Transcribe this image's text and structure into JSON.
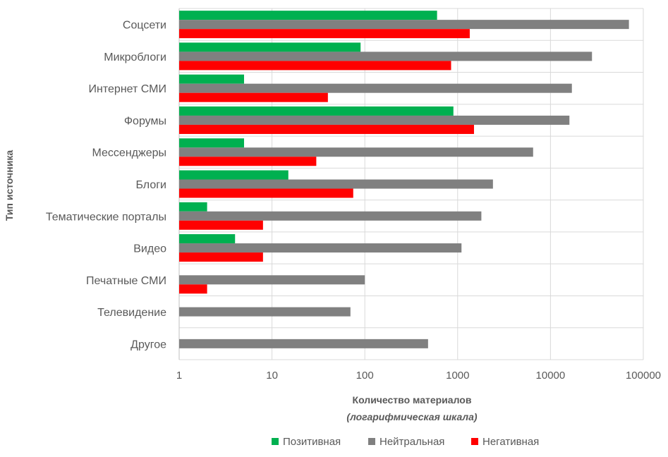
{
  "chart_data": {
    "type": "bar",
    "orientation": "horizontal",
    "x_scale": "log",
    "xlim": [
      1,
      100000
    ],
    "x_ticks": [
      "1",
      "10",
      "100",
      "1000",
      "10000",
      "100000"
    ],
    "xlabel": "Количество материалов",
    "xlabel_sub": "(логарифмическая шкала)",
    "ylabel": "Тип источника",
    "grid": true,
    "legend_position": "bottom",
    "categories": [
      "Соцсети",
      "Микроблоги",
      "Интернет СМИ",
      "Форумы",
      "Мессенджеры",
      "Блоги",
      "Тематические порталы",
      "Видео",
      "Печатные СМИ",
      "Телевидение",
      "Другое"
    ],
    "series": [
      {
        "name": "Позитивная",
        "color": "#00B050",
        "values": [
          600,
          90,
          5,
          900,
          5,
          15,
          2,
          4,
          null,
          null,
          null
        ]
      },
      {
        "name": "Нейтральная",
        "color": "#808080",
        "values": [
          70000,
          28000,
          17000,
          16000,
          6500,
          2400,
          1800,
          1100,
          100,
          70,
          480
        ]
      },
      {
        "name": "Негативная",
        "color": "#FF0000",
        "values": [
          1350,
          850,
          40,
          1500,
          30,
          75,
          8,
          8,
          2,
          null,
          null
        ]
      }
    ]
  }
}
